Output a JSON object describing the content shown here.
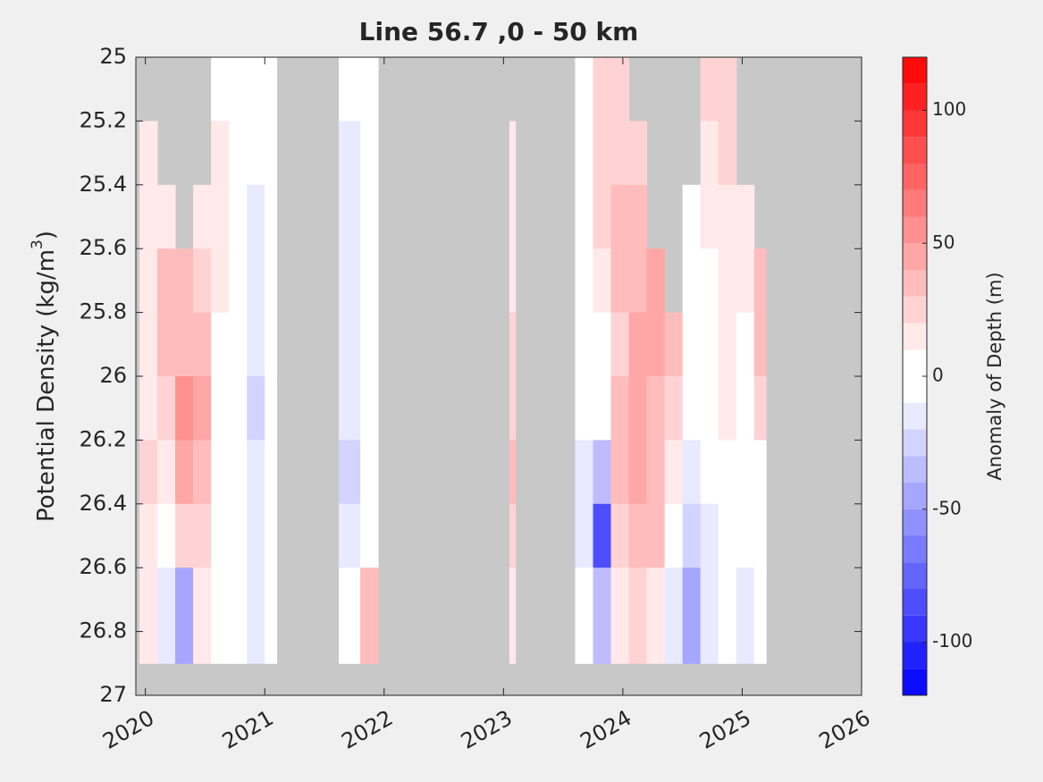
{
  "chart_data": {
    "type": "contour",
    "title": "Line 56.7 ,0 - 50 km",
    "ylabel": [
      "Potential Density (kg/m",
      "3",
      ")"
    ],
    "colorbar_label": "Anomaly of Depth (m)",
    "xlim": [
      2019.92,
      2026
    ],
    "xticks": [
      2020,
      2021,
      2022,
      2023,
      2024,
      2025,
      2026
    ],
    "ylim": [
      25,
      27
    ],
    "y_reversed": true,
    "yticks": [
      25,
      25.2,
      25.4,
      25.6,
      25.8,
      26,
      26.2,
      26.4,
      26.6,
      26.8,
      27
    ],
    "clim": [
      -120,
      120
    ],
    "cticks": [
      -100,
      -50,
      0,
      50,
      100
    ],
    "levels": 24,
    "cmap_low": "#0000ff",
    "cmap_high": "#ff0000",
    "background": "#c8c8c8",
    "x_edges": [
      2019.95,
      2020.1,
      2020.25,
      2020.4,
      2020.55,
      2020.7,
      2020.85,
      2021.0,
      2021.1,
      2021.62,
      2021.8,
      2021.95,
      2023.05,
      2023.1,
      2023.6,
      2023.75,
      2023.9,
      2024.05,
      2024.2,
      2024.35,
      2024.5,
      2024.65,
      2024.8,
      2024.95,
      2025.1,
      2025.2,
      2025.35
    ],
    "y_edges": [
      25,
      25.2,
      25.4,
      25.6,
      25.8,
      26,
      26.2,
      26.4,
      26.6,
      26.9
    ],
    "z": [
      [
        null,
        null,
        null,
        null,
        5,
        0,
        -10,
        0,
        null,
        -10,
        0,
        null,
        null,
        null,
        0,
        20,
        20,
        null,
        null,
        null,
        null,
        20,
        20,
        null,
        null,
        null
      ],
      [
        10,
        null,
        null,
        null,
        10,
        0,
        -10,
        0,
        null,
        -15,
        0,
        null,
        10,
        null,
        0,
        25,
        25,
        20,
        null,
        null,
        null,
        15,
        20,
        null,
        null,
        null
      ],
      [
        10,
        10,
        null,
        10,
        15,
        0,
        -15,
        0,
        null,
        -15,
        0,
        null,
        15,
        null,
        0,
        20,
        30,
        30,
        null,
        null,
        -5,
        10,
        15,
        10,
        null,
        null
      ],
      [
        15,
        30,
        30,
        25,
        10,
        0,
        -20,
        0,
        null,
        -20,
        -5,
        null,
        15,
        null,
        -5,
        10,
        30,
        35,
        40,
        null,
        -5,
        5,
        10,
        10,
        30,
        null
      ],
      [
        15,
        30,
        35,
        30,
        5,
        -5,
        -20,
        -5,
        null,
        -15,
        -5,
        null,
        20,
        null,
        -5,
        5,
        20,
        40,
        40,
        30,
        -10,
        0,
        10,
        5,
        30,
        null
      ],
      [
        10,
        20,
        55,
        40,
        5,
        -10,
        -25,
        -10,
        null,
        -20,
        -5,
        null,
        25,
        null,
        -10,
        -10,
        30,
        40,
        35,
        20,
        -10,
        -5,
        10,
        5,
        20,
        null
      ],
      [
        20,
        10,
        45,
        35,
        5,
        -5,
        -20,
        -10,
        null,
        -25,
        -10,
        null,
        30,
        null,
        -15,
        -40,
        30,
        40,
        30,
        10,
        -15,
        -5,
        5,
        0,
        0,
        null
      ],
      [
        15,
        0,
        20,
        20,
        0,
        -10,
        -15,
        -5,
        null,
        -15,
        5,
        null,
        20,
        null,
        -20,
        -90,
        25,
        35,
        30,
        -10,
        -30,
        -15,
        0,
        -10,
        -10,
        null
      ],
      [
        10,
        -20,
        -50,
        10,
        5,
        -10,
        -20,
        -5,
        null,
        -10,
        30,
        null,
        15,
        null,
        -10,
        -40,
        10,
        20,
        10,
        -20,
        -50,
        -20,
        -10,
        -15,
        -10,
        null
      ]
    ]
  }
}
